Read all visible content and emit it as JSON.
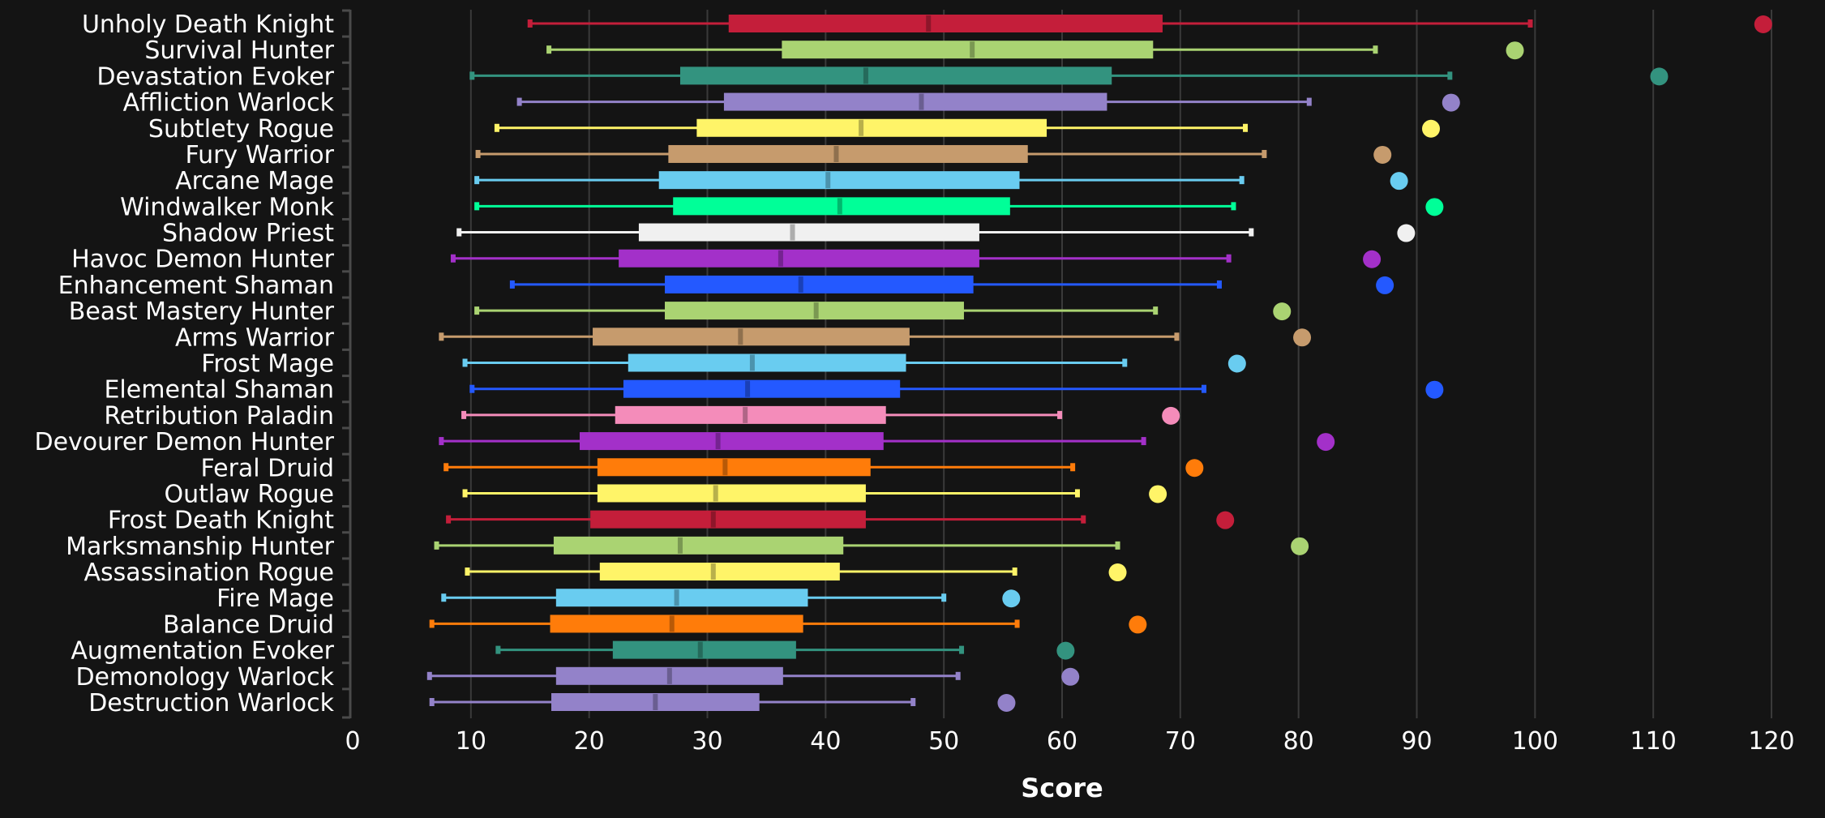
{
  "chart_data": {
    "type": "box",
    "title": "",
    "xlabel": "Score",
    "ylabel": "",
    "xlim": [
      0,
      120
    ],
    "xticks": [
      0,
      10,
      20,
      30,
      40,
      50,
      60,
      70,
      80,
      90,
      100,
      110,
      120
    ],
    "grid": "vertical",
    "legend": "none",
    "series": [
      {
        "name": "Unholy Death Knight",
        "color": "#C41E3A",
        "whisker_low": 15.0,
        "q1": 31.8,
        "median": 48.7,
        "q3": 68.5,
        "whisker_high": 99.6,
        "outlier": 119.3
      },
      {
        "name": "Survival Hunter",
        "color": "#AAD372",
        "whisker_low": 16.6,
        "q1": 36.3,
        "median": 52.4,
        "q3": 67.7,
        "whisker_high": 86.5,
        "outlier": 98.3
      },
      {
        "name": "Devastation Evoker",
        "color": "#33937F",
        "whisker_low": 10.1,
        "q1": 27.7,
        "median": 43.4,
        "q3": 64.2,
        "whisker_high": 92.8,
        "outlier": 110.5
      },
      {
        "name": "Affliction Warlock",
        "color": "#9382C9",
        "whisker_low": 14.1,
        "q1": 31.4,
        "median": 48.1,
        "q3": 63.8,
        "whisker_high": 80.9,
        "outlier": 92.9
      },
      {
        "name": "Subtlety Rogue",
        "color": "#FFF468",
        "whisker_low": 12.2,
        "q1": 29.1,
        "median": 43.0,
        "q3": 58.7,
        "whisker_high": 75.5,
        "outlier": 91.2
      },
      {
        "name": "Fury Warrior",
        "color": "#C69B6D",
        "whisker_low": 10.6,
        "q1": 26.7,
        "median": 40.9,
        "q3": 57.1,
        "whisker_high": 77.1,
        "outlier": 87.1
      },
      {
        "name": "Arcane Mage",
        "color": "#69CCF0",
        "whisker_low": 10.5,
        "q1": 25.9,
        "median": 40.2,
        "q3": 56.4,
        "whisker_high": 75.2,
        "outlier": 88.5
      },
      {
        "name": "Windwalker Monk",
        "color": "#00FF98",
        "whisker_low": 10.5,
        "q1": 27.1,
        "median": 41.2,
        "q3": 55.6,
        "whisker_high": 74.5,
        "outlier": 91.5
      },
      {
        "name": "Shadow Priest",
        "color": "#F0F0F0",
        "whisker_low": 9.0,
        "q1": 24.2,
        "median": 37.2,
        "q3": 53.0,
        "whisker_high": 76.0,
        "outlier": 89.1
      },
      {
        "name": "Havoc Demon Hunter",
        "color": "#A330C9",
        "whisker_low": 8.5,
        "q1": 22.5,
        "median": 36.2,
        "q3": 53.0,
        "whisker_high": 74.1,
        "outlier": 86.2
      },
      {
        "name": "Enhancement Shaman",
        "color": "#2459FF",
        "whisker_low": 13.5,
        "q1": 26.4,
        "median": 37.9,
        "q3": 52.5,
        "whisker_high": 73.3,
        "outlier": 87.3
      },
      {
        "name": "Beast Mastery Hunter",
        "color": "#AAD372",
        "whisker_low": 10.5,
        "q1": 26.4,
        "median": 39.2,
        "q3": 51.7,
        "whisker_high": 67.9,
        "outlier": 78.6
      },
      {
        "name": "Arms Warrior",
        "color": "#C69B6D",
        "whisker_low": 7.5,
        "q1": 20.3,
        "median": 32.8,
        "q3": 47.1,
        "whisker_high": 69.7,
        "outlier": 80.3
      },
      {
        "name": "Frost Mage",
        "color": "#69CCF0",
        "whisker_low": 9.5,
        "q1": 23.3,
        "median": 33.8,
        "q3": 46.8,
        "whisker_high": 65.3,
        "outlier": 74.8
      },
      {
        "name": "Elemental Shaman",
        "color": "#2459FF",
        "whisker_low": 10.1,
        "q1": 22.9,
        "median": 33.4,
        "q3": 46.3,
        "whisker_high": 72.0,
        "outlier": 91.5
      },
      {
        "name": "Retribution Paladin",
        "color": "#F48CBA",
        "whisker_low": 9.4,
        "q1": 22.2,
        "median": 33.2,
        "q3": 45.1,
        "whisker_high": 59.8,
        "outlier": 69.2
      },
      {
        "name": "Devourer Demon Hunter",
        "color": "#A330C9",
        "whisker_low": 7.5,
        "q1": 19.2,
        "median": 30.9,
        "q3": 44.9,
        "whisker_high": 66.9,
        "outlier": 82.3
      },
      {
        "name": "Feral Druid",
        "color": "#FF7C0A",
        "whisker_low": 7.9,
        "q1": 20.7,
        "median": 31.5,
        "q3": 43.8,
        "whisker_high": 60.9,
        "outlier": 71.2
      },
      {
        "name": "Outlaw Rogue",
        "color": "#FFF468",
        "whisker_low": 9.5,
        "q1": 20.7,
        "median": 30.7,
        "q3": 43.4,
        "whisker_high": 61.3,
        "outlier": 68.1
      },
      {
        "name": "Frost Death Knight",
        "color": "#C41E3A",
        "whisker_low": 8.1,
        "q1": 20.1,
        "median": 30.5,
        "q3": 43.4,
        "whisker_high": 61.8,
        "outlier": 73.8
      },
      {
        "name": "Marksmanship Hunter",
        "color": "#AAD372",
        "whisker_low": 7.1,
        "q1": 17.0,
        "median": 27.7,
        "q3": 41.5,
        "whisker_high": 64.7,
        "outlier": 80.1
      },
      {
        "name": "Assassination Rogue",
        "color": "#FFF468",
        "whisker_low": 9.7,
        "q1": 20.9,
        "median": 30.5,
        "q3": 41.2,
        "whisker_high": 56.0,
        "outlier": 64.7
      },
      {
        "name": "Fire Mage",
        "color": "#69CCF0",
        "whisker_low": 7.7,
        "q1": 17.2,
        "median": 27.4,
        "q3": 38.5,
        "whisker_high": 50.0,
        "outlier": 55.7
      },
      {
        "name": "Balance Druid",
        "color": "#FF7C0A",
        "whisker_low": 6.7,
        "q1": 16.7,
        "median": 27.0,
        "q3": 38.1,
        "whisker_high": 56.2,
        "outlier": 66.4
      },
      {
        "name": "Augmentation Evoker",
        "color": "#33937F",
        "whisker_low": 12.3,
        "q1": 22.0,
        "median": 29.4,
        "q3": 37.5,
        "whisker_high": 51.5,
        "outlier": 60.3
      },
      {
        "name": "Demonology Warlock",
        "color": "#9382C9",
        "whisker_low": 6.5,
        "q1": 17.2,
        "median": 26.8,
        "q3": 36.4,
        "whisker_high": 51.2,
        "outlier": 60.7
      },
      {
        "name": "Destruction Warlock",
        "color": "#9382C9",
        "whisker_low": 6.7,
        "q1": 16.8,
        "median": 25.6,
        "q3": 34.4,
        "whisker_high": 47.4,
        "outlier": 55.3
      }
    ]
  }
}
